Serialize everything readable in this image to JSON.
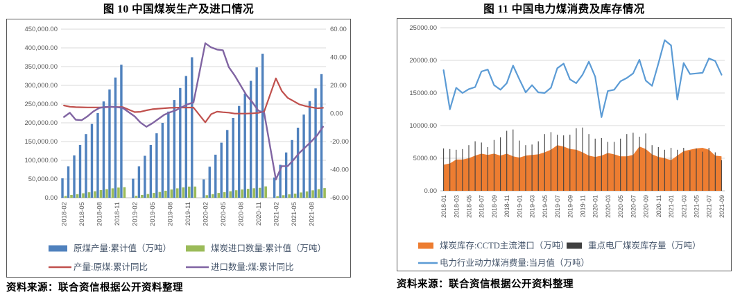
{
  "figures": [
    {
      "title": "图 10  中国煤炭生产及进口情况",
      "source": "资料来源：联合资信根据公开资料整理"
    },
    {
      "title": "图 11  中国电力煤消费及库存情况",
      "source": "资料来源：联合资信根据公开资料整理"
    }
  ],
  "chart_data": [
    {
      "type": "combo",
      "title": "图 10  中国煤炭生产及进口情况",
      "grid": true,
      "legend_position": "bottom",
      "y_axis_left": {
        "min": 0,
        "max": 450000,
        "tick_step": 50000,
        "comma": true
      },
      "y_axis_right": {
        "min": -60,
        "max": 60,
        "tick_step": 20
      },
      "x": [
        "2018-02",
        "2018-03",
        "2018-04",
        "2018-05",
        "2018-06",
        "2018-07",
        "2018-08",
        "2018-09",
        "2018-10",
        "2018-11",
        "2018-12",
        "2019-01",
        "2019-02",
        "2019-03",
        "2019-04",
        "2019-05",
        "2019-06",
        "2019-07",
        "2019-08",
        "2019-09",
        "2019-10",
        "2019-11",
        "2019-12",
        "2020-01",
        "2020-02",
        "2020-03",
        "2020-04",
        "2020-05",
        "2020-06",
        "2020-07",
        "2020-08",
        "2020-09",
        "2020-10",
        "2020-11",
        "2020-12",
        "2021-01",
        "2021-02",
        "2021-03",
        "2021-04",
        "2021-05",
        "2021-06",
        "2021-07",
        "2021-08",
        "2021-09",
        "2021-10"
      ],
      "x_ticks_shown": [
        "2018-02",
        "2018-05",
        "2018-08",
        "2018-11",
        "2019-02",
        "2019-05",
        "2019-08",
        "2019-11",
        "2020-02",
        "2020-05",
        "2020-08",
        "2020-11",
        "2021-02",
        "2021-05",
        "2021-08"
      ],
      "series": [
        {
          "name": "原煤产量:累计值（万吨）",
          "type": "bar",
          "axis": "left",
          "color": "#4f81bd",
          "values": [
            52000,
            84000,
            113000,
            141000,
            170000,
            197000,
            226000,
            257000,
            289000,
            321000,
            355000,
            null,
            51000,
            84000,
            112000,
            141000,
            172000,
            200000,
            230000,
            261000,
            293000,
            325000,
            375000,
            null,
            49000,
            83000,
            115000,
            147000,
            181000,
            213000,
            245000,
            278000,
            312000,
            348000,
            384000,
            null,
            54000,
            88000,
            121000,
            154000,
            187000,
            222000,
            258000,
            292000,
            330000
          ]
        },
        {
          "name": "煤炭进口数量:累计值（万吨）",
          "type": "bar",
          "axis": "left",
          "color": "#9bbb59",
          "values": [
            4900,
            7600,
            9700,
            12100,
            14600,
            17500,
            20400,
            22900,
            25200,
            27200,
            28100,
            null,
            5100,
            7500,
            10000,
            12700,
            15400,
            18700,
            22000,
            25100,
            27600,
            29900,
            30000,
            null,
            6800,
            9600,
            12700,
            14900,
            17400,
            20000,
            22100,
            23900,
            25300,
            26500,
            30400,
            null,
            4100,
            6800,
            9000,
            11100,
            14000,
            17000,
            19800,
            23000,
            25700
          ]
        },
        {
          "name": "产量:原煤:累计同比",
          "type": "line",
          "axis": "right",
          "color": "#c0504d",
          "values": [
            5.7,
            4.8,
            4.5,
            4.4,
            4.3,
            4.3,
            4.3,
            4.4,
            4.6,
            4.6,
            4.5,
            null,
            1.0,
            1.2,
            2.2,
            3.0,
            3.4,
            3.7,
            4.0,
            4.1,
            4.2,
            4.2,
            4.2,
            null,
            -6.3,
            -0.5,
            1.3,
            0.9,
            0.6,
            -0.1,
            -0.1,
            -0.1,
            0.1,
            0.4,
            1.4,
            null,
            25.0,
            16.0,
            11.1,
            8.8,
            6.4,
            5.3,
            4.4,
            3.7,
            4.0
          ]
        },
        {
          "name": "进口数量:煤:累计同比",
          "type": "line",
          "axis": "right",
          "color": "#8064a2",
          "values": [
            -2.5,
            0.5,
            -4.5,
            -4.8,
            -2.0,
            1.5,
            3.9,
            4.6,
            4.8,
            4.5,
            3.9,
            null,
            -2.0,
            -6.5,
            -9.5,
            -7.0,
            -4.0,
            -1.0,
            0.8,
            2.2,
            4.5,
            6.5,
            7.8,
            null,
            50.0,
            47.0,
            45.5,
            45.0,
            33.0,
            27.0,
            20.0,
            13.0,
            8.0,
            2.0,
            0.5,
            null,
            -47.0,
            -37.5,
            -37.5,
            -33.0,
            -28.0,
            -24.0,
            -20.0,
            -15.5,
            -9.5
          ]
        }
      ]
    },
    {
      "type": "combo",
      "title": "图 11  中国电力煤消费及库存情况",
      "grid": true,
      "legend_position": "bottom",
      "y_axis_left": {
        "min": 0,
        "max": 25000,
        "tick_step": 5000,
        "comma": false
      },
      "y_axis_right": null,
      "x": [
        "2018-01",
        "2018-02",
        "2018-03",
        "2018-04",
        "2018-05",
        "2018-06",
        "2018-07",
        "2018-08",
        "2018-09",
        "2018-10",
        "2018-11",
        "2018-12",
        "2019-01",
        "2019-02",
        "2019-03",
        "2019-04",
        "2019-05",
        "2019-06",
        "2019-07",
        "2019-08",
        "2019-09",
        "2019-10",
        "2019-11",
        "2019-12",
        "2020-01",
        "2020-02",
        "2020-03",
        "2020-04",
        "2020-05",
        "2020-06",
        "2020-07",
        "2020-08",
        "2020-09",
        "2020-10",
        "2020-11",
        "2020-12",
        "2021-01",
        "2021-02",
        "2021-03",
        "2021-04",
        "2021-05",
        "2021-06",
        "2021-07",
        "2021-08",
        "2021-09"
      ],
      "x_ticks_shown": [
        "2018-01",
        "2018-03",
        "2018-05",
        "2018-07",
        "2018-09",
        "2018-11",
        "2019-01",
        "2019-03",
        "2019-05",
        "2019-07",
        "2019-09",
        "2019-11",
        "2020-01",
        "2020-03",
        "2020-05",
        "2020-07",
        "2020-09",
        "2020-11",
        "2021-01",
        "2021-03",
        "2021-05",
        "2021-07",
        "2021-09"
      ],
      "series": [
        {
          "name": "煤炭库存:CCTD主流港口（万吨）",
          "type": "area",
          "axis": "left",
          "color": "#ed7d31",
          "values": [
            4000,
            4200,
            4800,
            4800,
            5000,
            5400,
            5700,
            5500,
            5700,
            5400,
            5700,
            5300,
            5100,
            5400,
            5500,
            5600,
            5900,
            6300,
            7000,
            6800,
            6400,
            6300,
            5900,
            5400,
            5200,
            5400,
            5800,
            5600,
            5300,
            5300,
            5500,
            6800,
            6400,
            5600,
            5200,
            5000,
            4700,
            5400,
            6100,
            6300,
            6500,
            6600,
            6300,
            5400,
            5300
          ]
        },
        {
          "name": "重点电厂煤炭库存量（万吨）",
          "type": "bar",
          "axis": "left",
          "color": "#404040",
          "values": [
            6500,
            6400,
            6300,
            6400,
            7000,
            7600,
            7400,
            6700,
            7800,
            8200,
            9200,
            9400,
            7700,
            7000,
            7100,
            7600,
            8700,
            9000,
            8600,
            8500,
            8600,
            9600,
            9700,
            8700,
            8000,
            8100,
            7500,
            7500,
            8000,
            8700,
            8900,
            8300,
            8800,
            7000,
            6700,
            6300,
            6600,
            6300,
            6600,
            6100,
            6500,
            6000,
            6600,
            5900,
            4700
          ]
        },
        {
          "name": "电力行业动力煤消费量:当月值（万吨）",
          "type": "line",
          "axis": "left",
          "color": "#5b9bd5",
          "values": [
            18500,
            12500,
            15800,
            15000,
            15600,
            15900,
            18300,
            18600,
            16200,
            15500,
            16500,
            19200,
            17100,
            15100,
            16200,
            15100,
            15000,
            15800,
            18800,
            19500,
            17100,
            16500,
            17800,
            19800,
            17500,
            11300,
            15300,
            15500,
            16800,
            17300,
            18000,
            20100,
            16900,
            16100,
            19500,
            23100,
            22300,
            14000,
            19600,
            17900,
            18000,
            18100,
            20300,
            19900,
            17800
          ]
        }
      ]
    }
  ],
  "style_tokens": {
    "gridline_color": "#d9d9d9",
    "axis_line_color": "#bfbfbf",
    "tick_label_color": "#595959",
    "legend_text_color": "#44546a"
  }
}
